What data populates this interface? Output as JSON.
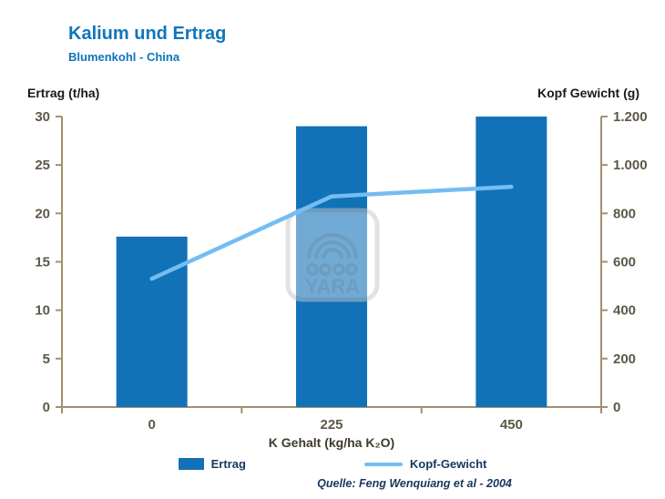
{
  "header": {
    "title": "Kalium und Ertrag",
    "subtitle": "Blumenkohl - China"
  },
  "chart_data": {
    "type": "bar",
    "categories": [
      "0",
      "225",
      "450"
    ],
    "series": [
      {
        "name": "Ertrag",
        "type": "bar",
        "axis": "left",
        "values": [
          17.6,
          29.0,
          30.0
        ],
        "color": "#1272b8"
      },
      {
        "name": "Kopf-Gewicht",
        "type": "line",
        "axis": "right",
        "values": [
          530,
          870,
          910
        ],
        "color": "#74bdf2"
      }
    ],
    "left_axis": {
      "label": "Ertrag (t/ha)",
      "min": 0,
      "max": 30,
      "step": 5,
      "ticks": [
        "0",
        "5",
        "10",
        "15",
        "20",
        "25",
        "30"
      ]
    },
    "right_axis": {
      "label": "Kopf Gewicht (g)",
      "min": 0,
      "max": 1200,
      "step": 200,
      "ticks": [
        "0",
        "200",
        "400",
        "600",
        "800",
        "1.000",
        "1.200"
      ]
    },
    "xlabel": "K Gehalt (kg/ha K₂O)",
    "legend": [
      {
        "label": "Ertrag",
        "swatch": "square",
        "color": "#1272b8"
      },
      {
        "label": "Kopf-Gewicht",
        "swatch": "line",
        "color": "#74bdf2"
      }
    ],
    "source": "Quelle: Feng Wenquiang et al - 2004",
    "watermark": "YARA",
    "grid": false,
    "legend_position": "bottom",
    "colors": {
      "title": "#0e76bc",
      "axis_line": "#a38f6d",
      "tick_label": "#5d5747",
      "axis_header": "#1a1a1a",
      "legend_text": "#17375e",
      "watermark": "#c7c7c7"
    }
  }
}
